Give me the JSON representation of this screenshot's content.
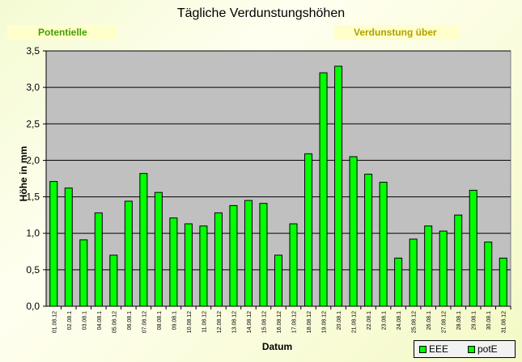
{
  "header": {
    "title": "Tägliche Verdunstungshöhen",
    "left_tag": "Potentielle",
    "right_tag": "Verdunstung über"
  },
  "colors": {
    "bar": "#00ff00",
    "plot_bg": "#c0c0c0",
    "frame": "#000000"
  },
  "legend": {
    "items": [
      "EEE",
      "potE"
    ]
  },
  "chart_data": {
    "type": "bar",
    "title": "Tägliche Verdunstungshöhen",
    "xlabel": "Datum",
    "ylabel": "Höhe in mm",
    "ylim": [
      0,
      3.5
    ],
    "yticks": [
      "0,0",
      "0,5",
      "1,0",
      "1,5",
      "2,0",
      "2,5",
      "3,0",
      "3,5"
    ],
    "grid": true,
    "legend_position": "bottom-right",
    "categories": [
      "01.08.12",
      "02.08.1",
      "03.08.1",
      "04.08.1",
      "05.08.12",
      "06.08.1",
      "07.08.12",
      "08.08.1",
      "09.08.1",
      "10.08.12",
      "11.08.12",
      "12.08.12",
      "13.08.12",
      "14.08.12",
      "15.08.12",
      "16.08.12",
      "17.08.12",
      "18.08.12",
      "19.08.12",
      "20.08.1",
      "21.08.12",
      "22.08.1",
      "23.08.1",
      "24.08.1",
      "25.08.12",
      "26.08.1",
      "27.08.12",
      "28.08.1",
      "29.08.1",
      "30.08.1",
      "31.08.12"
    ],
    "series": [
      {
        "name": "potE",
        "values": [
          1.71,
          1.62,
          0.91,
          1.28,
          0.7,
          1.44,
          1.82,
          1.56,
          1.21,
          1.13,
          1.1,
          1.28,
          1.38,
          1.45,
          1.41,
          0.7,
          1.13,
          2.09,
          3.2,
          3.29,
          2.05,
          1.81,
          1.7,
          0.66,
          0.92,
          1.1,
          1.03,
          1.25,
          1.59,
          0.88,
          0.66
        ]
      }
    ]
  }
}
